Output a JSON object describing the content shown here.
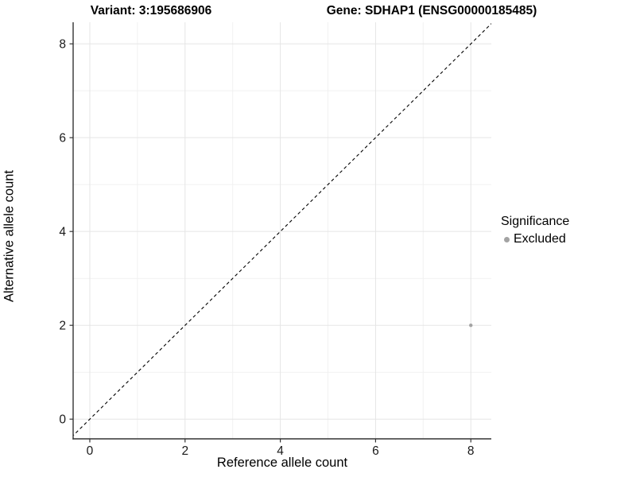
{
  "chart_data": {
    "type": "scatter",
    "titles": [
      "Variant: 3:195686906",
      "Gene: SDHAP1 (ENSG00000185485)"
    ],
    "xlabel": "Reference allele count",
    "ylabel": "Alternative allele count",
    "xlim": [
      -0.35,
      8.43
    ],
    "ylim": [
      -0.42,
      8.46
    ],
    "x_ticks": [
      0,
      2,
      4,
      6,
      8
    ],
    "y_ticks": [
      0,
      2,
      4,
      6,
      8
    ],
    "x_minor_gridlines": [
      1,
      3,
      5,
      7
    ],
    "y_minor_gridlines": [
      1,
      3,
      5,
      7
    ],
    "grid": true,
    "identity_line": {
      "style": "dashed",
      "slope": 1,
      "intercept": 0,
      "color": "#000000"
    },
    "series": [
      {
        "name": "Excluded",
        "color": "#a3a3a3",
        "point_radius": 2.2,
        "points": [
          {
            "x": 8,
            "y": 2
          }
        ]
      }
    ],
    "legend": {
      "title": "Significance",
      "position": "right",
      "entries": [
        {
          "label": "Excluded",
          "color": "#a3a3a3"
        }
      ]
    },
    "colors": {
      "axis_line": "#333333",
      "tick_mark": "#333333",
      "tick_label": "#1a1a1a",
      "major_gridline": "#e5e5e5",
      "minor_gridline": "#f1f1f1",
      "panel_background": "#ffffff"
    }
  }
}
